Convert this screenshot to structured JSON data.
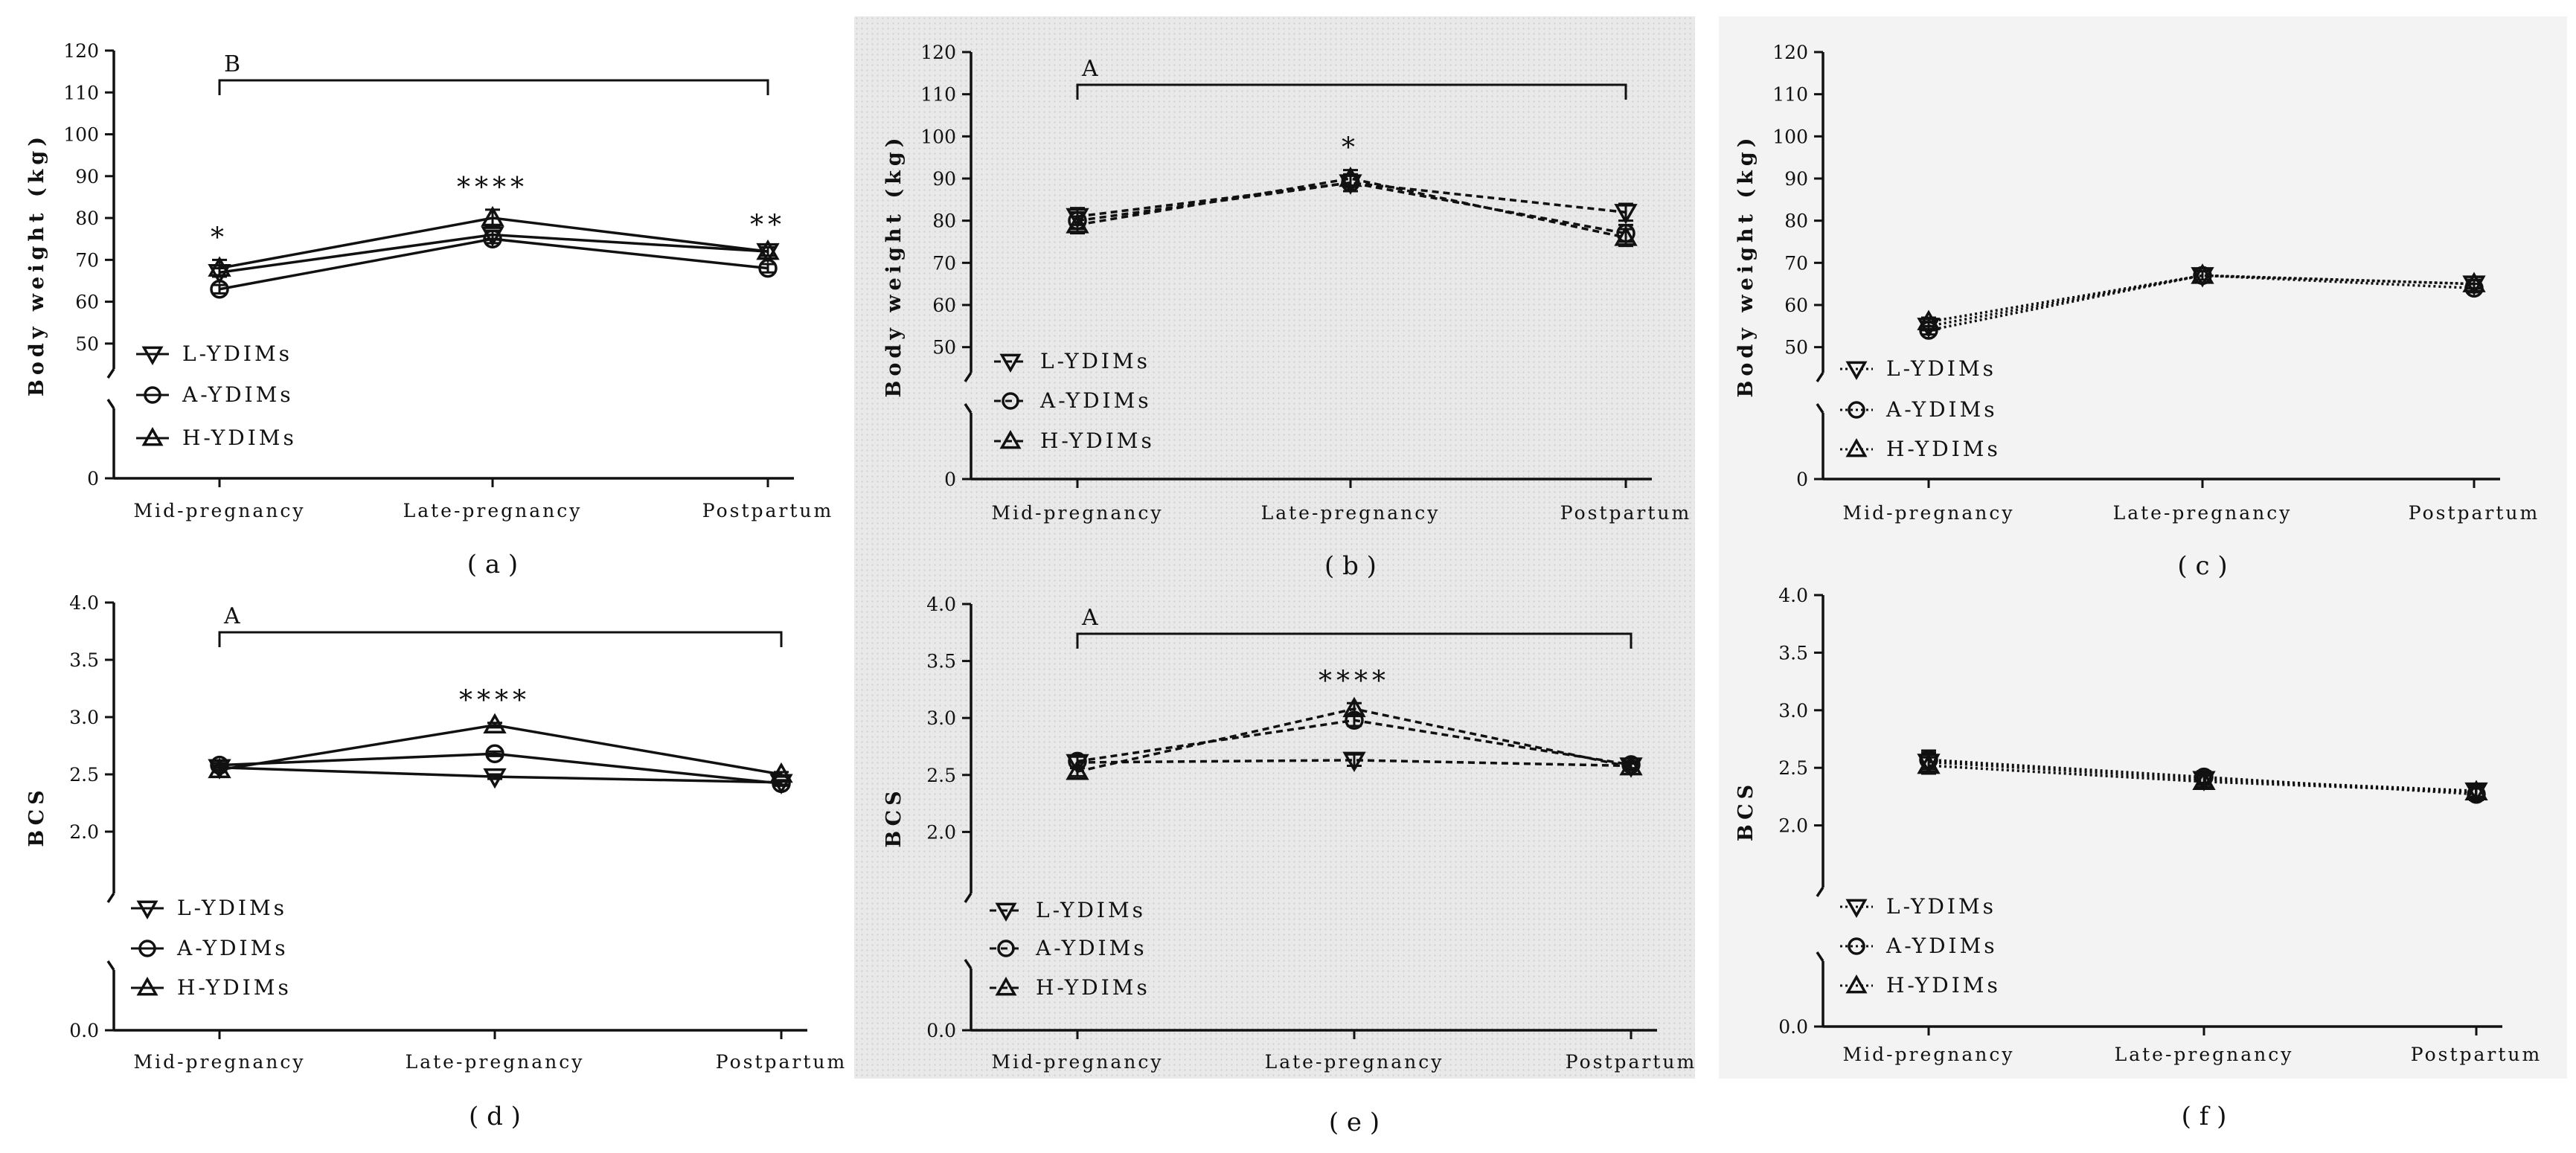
{
  "figure": {
    "background_colors": {
      "plain": "#ffffff",
      "dotted": "#e8e8e8",
      "light": "#f3f3f3"
    },
    "line_color": "#111111"
  },
  "chart_data": [
    {
      "id": "a",
      "type": "line",
      "caption": "( a )",
      "background": "plain",
      "line_style": "solid",
      "ylabel": "Body weight (kg)",
      "xlabel": "",
      "categories": [
        "Mid-pregnancy",
        "Late-pregnancy",
        "Postpartum"
      ],
      "yticks": [
        0,
        50,
        60,
        70,
        80,
        90,
        100,
        110,
        120
      ],
      "ylim": [
        0,
        120
      ],
      "axis_break": [
        0,
        45
      ],
      "grid": false,
      "legend_position": "bottom-left",
      "series": [
        {
          "name": "L-YDIMs",
          "marker": "triangle-down",
          "values": [
            67,
            76,
            72
          ],
          "errors": [
            1,
            1,
            1
          ]
        },
        {
          "name": "A-YDIMs",
          "marker": "circle",
          "values": [
            63,
            75,
            68
          ],
          "errors": [
            1,
            1,
            1
          ]
        },
        {
          "name": "H-YDIMs",
          "marker": "triangle-up",
          "values": [
            68,
            80,
            72
          ],
          "errors": [
            2,
            2,
            1
          ]
        }
      ],
      "significance": [
        {
          "category": "Mid-pregnancy",
          "label": "*"
        },
        {
          "category": "Late-pregnancy",
          "label": "****"
        },
        {
          "category": "Postpartum",
          "label": "**"
        }
      ],
      "group_bracket": {
        "label": "B",
        "from": "Mid-pregnancy",
        "to": "Postpartum"
      }
    },
    {
      "id": "b",
      "type": "line",
      "caption": "( b )",
      "background": "dotted",
      "line_style": "dashed",
      "ylabel": "Body weight (kg)",
      "xlabel": "",
      "categories": [
        "Mid-pregnancy",
        "Late-pregnancy",
        "Postpartum"
      ],
      "yticks": [
        0,
        50,
        60,
        70,
        80,
        90,
        100,
        110,
        120
      ],
      "ylim": [
        0,
        120
      ],
      "axis_break": [
        0,
        45
      ],
      "grid": false,
      "legend_position": "bottom-left",
      "series": [
        {
          "name": "L-YDIMs",
          "marker": "triangle-down",
          "values": [
            81,
            89,
            82
          ],
          "errors": [
            2,
            2,
            2
          ]
        },
        {
          "name": "A-YDIMs",
          "marker": "circle",
          "values": [
            80,
            89,
            77
          ],
          "errors": [
            2,
            2,
            2
          ]
        },
        {
          "name": "H-YDIMs",
          "marker": "triangle-up",
          "values": [
            79,
            90,
            76
          ],
          "errors": [
            2,
            2,
            2
          ]
        }
      ],
      "significance": [
        {
          "category": "Late-pregnancy",
          "label": "*"
        }
      ],
      "group_bracket": {
        "label": "A",
        "from": "Mid-pregnancy",
        "to": "Postpartum"
      }
    },
    {
      "id": "c",
      "type": "line",
      "caption": "( c )",
      "background": "light",
      "line_style": "dotted",
      "ylabel": "Body weight (kg)",
      "xlabel": "",
      "categories": [
        "Mid-pregnancy",
        "Late-pregnancy",
        "Postpartum"
      ],
      "yticks": [
        0,
        50,
        60,
        70,
        80,
        90,
        100,
        110,
        120
      ],
      "ylim": [
        0,
        120
      ],
      "axis_break": [
        0,
        45
      ],
      "grid": false,
      "legend_position": "bottom-left",
      "series": [
        {
          "name": "L-YDIMs",
          "marker": "triangle-down",
          "values": [
            55,
            67,
            65
          ],
          "errors": [
            1,
            1,
            1
          ]
        },
        {
          "name": "A-YDIMs",
          "marker": "circle",
          "values": [
            54,
            67,
            64
          ],
          "errors": [
            1,
            1,
            1
          ]
        },
        {
          "name": "H-YDIMs",
          "marker": "triangle-up",
          "values": [
            56,
            67,
            65
          ],
          "errors": [
            1,
            1,
            1
          ]
        }
      ],
      "significance": [],
      "group_bracket": null
    },
    {
      "id": "d",
      "type": "line",
      "caption": "( d )",
      "background": "plain",
      "line_style": "solid",
      "ylabel": "BCS",
      "xlabel": "",
      "categories": [
        "Mid-pregnancy",
        "Late-pregnancy",
        "Postpartum"
      ],
      "yticks": [
        0.0,
        2.0,
        2.5,
        3.0,
        3.5,
        4.0
      ],
      "ylim": [
        0,
        4
      ],
      "axis_break": [
        0,
        1.5
      ],
      "grid": false,
      "legend_position": "bottom-left",
      "series": [
        {
          "name": "L-YDIMs",
          "marker": "triangle-down",
          "values": [
            2.56,
            2.48,
            2.43
          ],
          "errors": [
            0.02,
            0.02,
            0.02
          ]
        },
        {
          "name": "A-YDIMs",
          "marker": "circle",
          "values": [
            2.58,
            2.68,
            2.42
          ],
          "errors": [
            0.02,
            0.02,
            0.02
          ]
        },
        {
          "name": "H-YDIMs",
          "marker": "triangle-up",
          "values": [
            2.54,
            2.93,
            2.5
          ],
          "errors": [
            0.02,
            0.02,
            0.02
          ]
        }
      ],
      "significance": [
        {
          "category": "Late-pregnancy",
          "label": "****"
        }
      ],
      "group_bracket": {
        "label": "A",
        "from": "Mid-pregnancy",
        "to": "Postpartum"
      }
    },
    {
      "id": "e",
      "type": "line",
      "caption": "( e )",
      "background": "dotted",
      "line_style": "dashed",
      "ylabel": "BCS",
      "xlabel": "",
      "categories": [
        "Mid-pregnancy",
        "Late-pregnancy",
        "Postpartum"
      ],
      "yticks": [
        0.0,
        2.0,
        2.5,
        3.0,
        3.5,
        4.0
      ],
      "ylim": [
        0,
        4
      ],
      "axis_break": [
        0,
        1.5
      ],
      "grid": false,
      "legend_position": "bottom-left",
      "series": [
        {
          "name": "L-YDIMs",
          "marker": "triangle-down",
          "values": [
            2.61,
            2.63,
            2.58
          ],
          "errors": [
            0.05,
            0.05,
            0.03
          ]
        },
        {
          "name": "A-YDIMs",
          "marker": "circle",
          "values": [
            2.62,
            2.98,
            2.59
          ],
          "errors": [
            0.05,
            0.05,
            0.03
          ]
        },
        {
          "name": "H-YDIMs",
          "marker": "triangle-up",
          "values": [
            2.53,
            3.08,
            2.57
          ],
          "errors": [
            0.04,
            0.05,
            0.03
          ]
        }
      ],
      "significance": [
        {
          "category": "Late-pregnancy",
          "label": "****"
        }
      ],
      "group_bracket": {
        "label": "A",
        "from": "Mid-pregnancy",
        "to": "Postpartum"
      }
    },
    {
      "id": "f",
      "type": "line",
      "caption": "( f )",
      "background": "light",
      "line_style": "dotted",
      "ylabel": "BCS",
      "xlabel": "",
      "categories": [
        "Mid-pregnancy",
        "Late-pregnancy",
        "Postpartum"
      ],
      "yticks": [
        0.0,
        2.0,
        2.5,
        3.0,
        3.5,
        4.0
      ],
      "ylim": [
        0,
        4
      ],
      "axis_break": [
        0,
        1.5
      ],
      "grid": false,
      "legend_position": "bottom-left",
      "series": [
        {
          "name": "L-YDIMs",
          "marker": "triangle-down",
          "values": [
            2.55,
            2.4,
            2.3
          ],
          "errors": [
            0.08,
            0.05,
            0.05
          ]
        },
        {
          "name": "A-YDIMs",
          "marker": "circle",
          "values": [
            2.57,
            2.42,
            2.27
          ],
          "errors": [
            0.08,
            0.05,
            0.05
          ]
        },
        {
          "name": "H-YDIMs",
          "marker": "triangle-up",
          "values": [
            2.52,
            2.38,
            2.29
          ],
          "errors": [
            0.07,
            0.05,
            0.05
          ]
        }
      ],
      "significance": [],
      "group_bracket": null
    }
  ]
}
